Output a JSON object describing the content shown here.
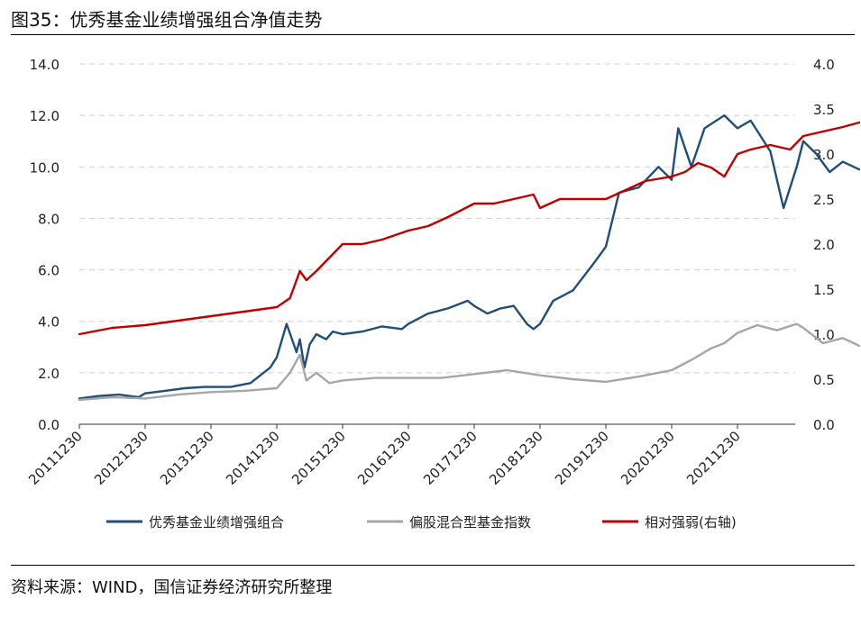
{
  "title": "图35：优秀基金业绩增强组合净值走势",
  "source": "资料来源：WIND，国信证券经济研究所整理",
  "chart_data": {
    "type": "line",
    "x_categories": [
      "20111230",
      "20121230",
      "20131230",
      "20141230",
      "20151230",
      "20161230",
      "20171230",
      "20181230",
      "20191230",
      "20201230",
      "20211230"
    ],
    "y_left_ticks": [
      "0.0",
      "2.0",
      "4.0",
      "6.0",
      "8.0",
      "10.0",
      "12.0",
      "14.0"
    ],
    "y_right_ticks": [
      "0.0",
      "0.5",
      "1.0",
      "1.5",
      "2.0",
      "2.5",
      "3.0",
      "3.5",
      "4.0"
    ],
    "ylim_left": [
      0,
      14
    ],
    "ylim_right": [
      0,
      4
    ],
    "grid": "horizontal dashed",
    "legend_position": "bottom",
    "series": [
      {
        "name": "优秀基金业绩增强组合",
        "axis": "left",
        "color": "#1f4e79",
        "x": [
          0,
          0.3,
          0.6,
          0.9,
          1.0,
          1.3,
          1.6,
          1.9,
          2.0,
          2.3,
          2.6,
          2.9,
          3.0,
          3.15,
          3.3,
          3.35,
          3.42,
          3.5,
          3.6,
          3.75,
          3.85,
          4.0,
          4.3,
          4.6,
          4.9,
          5.0,
          5.3,
          5.6,
          5.9,
          6.0,
          6.2,
          6.4,
          6.6,
          6.8,
          6.9,
          7.0,
          7.2,
          7.5,
          7.8,
          8.0,
          8.2,
          8.5,
          8.8,
          9.0,
          9.1,
          9.3,
          9.5,
          9.8,
          10.0,
          10.2,
          10.5,
          10.7,
          10.9,
          11.0,
          11.2,
          11.4,
          11.6,
          11.85
        ],
        "values": [
          1.0,
          1.1,
          1.15,
          1.05,
          1.2,
          1.3,
          1.4,
          1.45,
          1.45,
          1.45,
          1.6,
          2.2,
          2.6,
          3.9,
          2.8,
          3.3,
          2.2,
          3.1,
          3.5,
          3.3,
          3.6,
          3.5,
          3.6,
          3.8,
          3.7,
          3.9,
          4.3,
          4.5,
          4.8,
          4.6,
          4.3,
          4.5,
          4.6,
          3.9,
          3.7,
          3.9,
          4.8,
          5.2,
          6.2,
          6.9,
          9.0,
          9.2,
          10.0,
          9.5,
          11.5,
          10.0,
          11.5,
          12.0,
          11.5,
          11.8,
          10.6,
          8.4,
          10.0,
          11.0,
          10.5,
          9.8,
          10.2,
          9.9
        ]
      },
      {
        "name": "偏股混合型基金指数",
        "axis": "left",
        "color": "#a6a6a6",
        "x": [
          0,
          0.5,
          1.0,
          1.5,
          2.0,
          2.5,
          3.0,
          3.2,
          3.35,
          3.45,
          3.6,
          3.8,
          4.0,
          4.5,
          5.0,
          5.5,
          6.0,
          6.5,
          7.0,
          7.5,
          8.0,
          8.5,
          9.0,
          9.3,
          9.6,
          9.8,
          10.0,
          10.3,
          10.6,
          10.9,
          11.0,
          11.3,
          11.6,
          11.85
        ],
        "values": [
          0.95,
          1.05,
          1.0,
          1.15,
          1.25,
          1.3,
          1.4,
          2.0,
          2.7,
          1.7,
          2.0,
          1.6,
          1.7,
          1.8,
          1.8,
          1.8,
          1.95,
          2.1,
          1.9,
          1.75,
          1.65,
          1.85,
          2.1,
          2.5,
          2.95,
          3.15,
          3.55,
          3.85,
          3.65,
          3.9,
          3.75,
          3.15,
          3.35,
          3.05
        ]
      },
      {
        "name": "相对强弱(右轴)",
        "axis": "right",
        "color": "#c00000",
        "x": [
          0,
          0.5,
          1.0,
          1.5,
          2.0,
          2.5,
          3.0,
          3.2,
          3.35,
          3.45,
          3.6,
          3.8,
          4.0,
          4.3,
          4.6,
          5.0,
          5.3,
          5.6,
          6.0,
          6.3,
          6.6,
          6.9,
          7.0,
          7.3,
          7.6,
          8.0,
          8.3,
          8.6,
          9.0,
          9.2,
          9.4,
          9.6,
          9.8,
          10.0,
          10.2,
          10.5,
          10.8,
          11.0,
          11.3,
          11.6,
          11.85
        ],
        "values": [
          1.0,
          1.07,
          1.1,
          1.15,
          1.2,
          1.25,
          1.3,
          1.4,
          1.7,
          1.6,
          1.7,
          1.85,
          2.0,
          2.0,
          2.05,
          2.15,
          2.2,
          2.3,
          2.45,
          2.45,
          2.5,
          2.55,
          2.4,
          2.5,
          2.5,
          2.5,
          2.6,
          2.7,
          2.75,
          2.8,
          2.9,
          2.85,
          2.75,
          3.0,
          3.05,
          3.1,
          3.05,
          3.2,
          3.25,
          3.3,
          3.35
        ]
      }
    ]
  }
}
